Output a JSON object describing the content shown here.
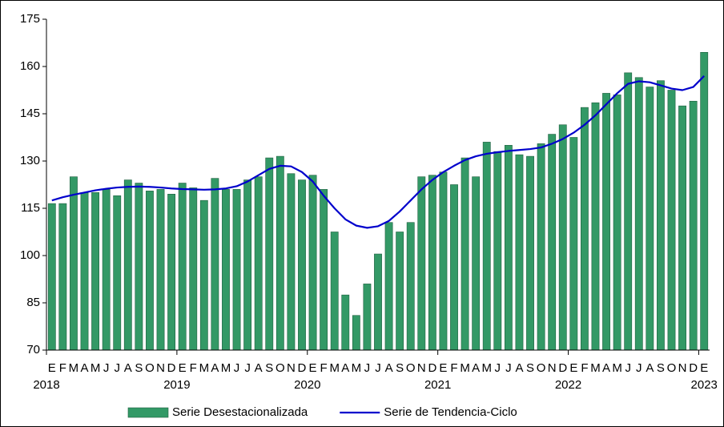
{
  "chart_data": {
    "type": "bar",
    "categories": [
      "E",
      "F",
      "M",
      "A",
      "M",
      "J",
      "J",
      "A",
      "S",
      "O",
      "N",
      "D",
      "E",
      "F",
      "M",
      "A",
      "M",
      "J",
      "J",
      "A",
      "S",
      "O",
      "N",
      "D",
      "E",
      "F",
      "M",
      "A",
      "M",
      "J",
      "J",
      "A",
      "S",
      "O",
      "N",
      "D",
      "E",
      "F",
      "M",
      "A",
      "M",
      "J",
      "J",
      "A",
      "S",
      "O",
      "N",
      "D",
      "E",
      "F",
      "M",
      "A",
      "M",
      "J",
      "J",
      "A",
      "S",
      "O",
      "N",
      "D",
      "E"
    ],
    "years": [
      "2018",
      null,
      null,
      null,
      null,
      null,
      null,
      null,
      null,
      null,
      null,
      null,
      "2019",
      null,
      null,
      null,
      null,
      null,
      null,
      null,
      null,
      null,
      null,
      null,
      "2020",
      null,
      null,
      null,
      null,
      null,
      null,
      null,
      null,
      null,
      null,
      null,
      "2021",
      null,
      null,
      null,
      null,
      null,
      null,
      null,
      null,
      null,
      null,
      null,
      "2022",
      null,
      null,
      null,
      null,
      null,
      null,
      null,
      null,
      null,
      null,
      null,
      "2023"
    ],
    "series": [
      {
        "name": "Serie Desestacionalizada",
        "type": "bar",
        "color": "#339966",
        "values": [
          116.5,
          116.5,
          125,
          120,
          120,
          121,
          119,
          124,
          123,
          120.5,
          121,
          119.5,
          123,
          121.5,
          117.5,
          124.5,
          121,
          121,
          124,
          125,
          131,
          131.5,
          126,
          124,
          125.5,
          121,
          107.5,
          87.5,
          81,
          91,
          100.5,
          110.5,
          107.5,
          110.5,
          125,
          125.5,
          126.5,
          122.5,
          131,
          125,
          136,
          133,
          135,
          132,
          131.5,
          135.5,
          138.5,
          141.5,
          137.5,
          147,
          148.5,
          151.5,
          151,
          158,
          156.5,
          153.5,
          155.5,
          152.5,
          147.5,
          149,
          164.5
        ]
      },
      {
        "name": "Serie de Tendencia-Ciclo",
        "type": "line",
        "color": "#0000cc",
        "values": [
          117.5,
          118.5,
          119.3,
          120,
          120.7,
          121.2,
          121.6,
          121.8,
          121.9,
          121.8,
          121.6,
          121.3,
          121.1,
          121,
          120.9,
          121,
          121.3,
          122,
          123.5,
          125.5,
          127.5,
          128.5,
          128.3,
          126.5,
          123.5,
          119,
          115,
          111.5,
          109.5,
          108.8,
          109.3,
          111,
          114,
          117.5,
          121,
          124,
          126.5,
          128.5,
          130.3,
          131.5,
          132.3,
          132.8,
          133.2,
          133.5,
          133.8,
          134.3,
          135.5,
          137,
          139,
          141.5,
          144.5,
          148,
          151.5,
          154.5,
          155.3,
          155,
          154,
          153,
          152.5,
          153.5,
          157
        ]
      }
    ],
    "ylim": [
      70,
      175
    ],
    "yticks": [
      70,
      85,
      100,
      115,
      130,
      145,
      160,
      175
    ],
    "grid": false,
    "legend": "bottom"
  }
}
